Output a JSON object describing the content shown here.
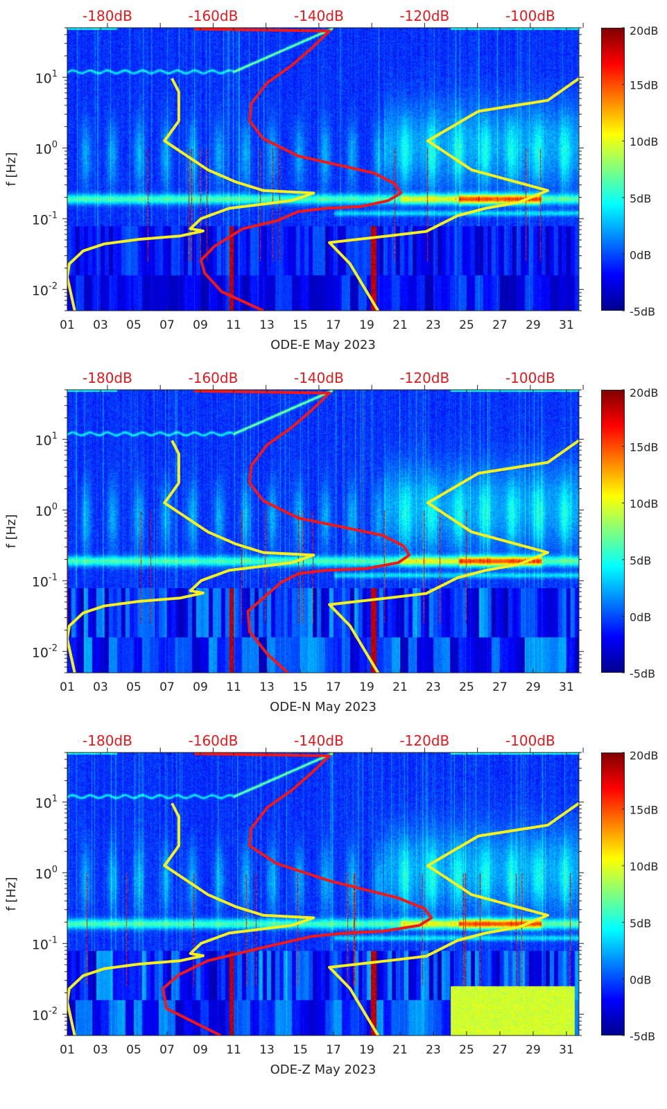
{
  "chart_data": {
    "type": "heatmap",
    "layout": "3 stacked spectrogram panels with colorbars",
    "x_axis": {
      "ticks": [
        "01",
        "03",
        "05",
        "07",
        "09",
        "11",
        "13",
        "15",
        "17",
        "19",
        "21",
        "23",
        "25",
        "27",
        "29",
        "31"
      ],
      "tick_values": [
        1,
        3,
        5,
        7,
        9,
        11,
        13,
        15,
        17,
        19,
        21,
        23,
        25,
        27,
        29,
        31
      ],
      "xlim": [
        1,
        31.75
      ]
    },
    "y_axis": {
      "label": "f [Hz]",
      "scale": "log",
      "ylim": [
        0.005,
        50
      ],
      "ticks": [
        {
          "base": "10",
          "exp": "1",
          "value": 10
        },
        {
          "base": "10",
          "exp": "0",
          "value": 1
        },
        {
          "base": "10",
          "exp": "-1",
          "value": 0.1
        },
        {
          "base": "10",
          "exp": "-2",
          "value": 0.01
        }
      ]
    },
    "top_axis": {
      "ticks": [
        "-180dB",
        "-160dB",
        "-140dB",
        "-120dB",
        "-100dB"
      ],
      "tick_values": [
        -180,
        -160,
        -140,
        -120,
        -100
      ],
      "xlim": [
        -187.6,
        -90.8
      ],
      "color": "#e8171b"
    },
    "colorbar": {
      "clim": [
        -5,
        20
      ],
      "ticks": [
        "20dB",
        "15dB",
        "10dB",
        "5dB",
        "0dB",
        "-5dB"
      ],
      "tick_values": [
        20,
        15,
        10,
        5,
        0,
        -5
      ],
      "colormap": "jet"
    },
    "curve_colors": {
      "noise_models": "#f5f01e",
      "median": "#f01818"
    },
    "noise_model_low": {
      "db": [
        -167.8,
        -166.5,
        -166.5,
        -169.2,
        -161.0,
        -155.7,
        -150.5,
        -141.0,
        -145.2,
        -157.0,
        -162.3,
        -164.3,
        -161.9,
        -166.2,
        -174.1,
        -180.6,
        -184.6,
        -187.2,
        -187.6,
        -186.2
      ],
      "hz": [
        9.6,
        6.2,
        2.4,
        1.26,
        0.49,
        0.33,
        0.25,
        0.23,
        0.18,
        0.14,
        0.1,
        0.072,
        0.067,
        0.057,
        0.051,
        0.044,
        0.035,
        0.023,
        0.015,
        0.005
      ]
    },
    "noise_model_high": {
      "db": [
        -90.8,
        -96.7,
        -109.8,
        -119.4,
        -111.1,
        -96.7,
        -102.2,
        -108.5,
        -113.8,
        -119.7,
        -126.9,
        -138.0,
        -134.1,
        -128.8
      ],
      "hz": [
        9.6,
        4.7,
        3.3,
        1.26,
        0.49,
        0.25,
        0.17,
        0.14,
        0.11,
        0.066,
        0.057,
        0.046,
        0.023,
        0.005
      ]
    },
    "panels": [
      {
        "xlabel": "ODE-E May 2023",
        "median": {
          "db": [
            -163.6,
            -138.0,
            -141.3,
            -145.2,
            -149.8,
            -152.8,
            -153.1,
            -150.5,
            -143.9,
            -129.5,
            -125.6,
            -124.5,
            -126.9,
            -132.1,
            -138.7,
            -143.9,
            -147.8,
            -154.4,
            -159.7,
            -162.3,
            -161.6,
            -158.4,
            -150.5
          ],
          "hz": [
            48,
            45,
            26,
            14.5,
            8.3,
            4.2,
            2.4,
            1.35,
            0.77,
            0.44,
            0.31,
            0.23,
            0.18,
            0.148,
            0.14,
            0.126,
            0.094,
            0.072,
            0.041,
            0.026,
            0.017,
            0.0093,
            0.005
          ]
        }
      },
      {
        "xlabel": "ODE-N May 2023",
        "median": {
          "db": [
            -163.6,
            -138.0,
            -141.3,
            -145.2,
            -149.8,
            -152.8,
            -153.1,
            -150.5,
            -143.9,
            -128.0,
            -124.0,
            -122.9,
            -125.0,
            -131.0,
            -138.7,
            -143.9,
            -147.2,
            -150.5,
            -153.4,
            -153.1,
            -149.8,
            -145.9
          ],
          "hz": [
            48,
            45,
            26,
            14.5,
            8.3,
            4.2,
            2.4,
            1.35,
            0.77,
            0.44,
            0.31,
            0.23,
            0.18,
            0.148,
            0.14,
            0.126,
            0.094,
            0.057,
            0.037,
            0.019,
            0.0093,
            0.005
          ]
        }
      },
      {
        "xlabel": "ODE-Z May 2023",
        "median": {
          "db": [
            -163.6,
            -138.0,
            -141.3,
            -145.2,
            -149.8,
            -152.8,
            -153.1,
            -148.0,
            -138.0,
            -125.0,
            -120.0,
            -118.7,
            -121.0,
            -128.0,
            -135.0,
            -141.3,
            -150.5,
            -161.0,
            -166.5,
            -169.5,
            -168.8,
            -158.6
          ],
          "hz": [
            48,
            45,
            26,
            14.5,
            8.3,
            4.2,
            2.4,
            1.35,
            0.77,
            0.44,
            0.31,
            0.23,
            0.18,
            0.148,
            0.14,
            0.126,
            0.088,
            0.057,
            0.036,
            0.023,
            0.012,
            0.005
          ]
        }
      }
    ]
  }
}
